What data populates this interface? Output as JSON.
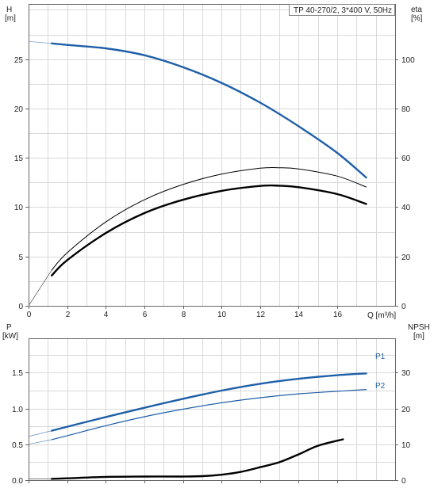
{
  "chart_data": [
    {
      "type": "line",
      "title": "TP 40-270/2, 3*400 V, 50Hz",
      "x_unit_label": "Q [m³/h]",
      "left_axis": {
        "label": "H",
        "unit": "[m]",
        "range": [
          0,
          30.6
        ],
        "ticks": [
          0,
          5,
          10,
          15,
          20,
          25
        ]
      },
      "right_axis": {
        "label": "eta",
        "unit": "[%]",
        "range": [
          0,
          122.4
        ],
        "ticks": [
          0,
          20,
          40,
          60,
          80,
          100
        ]
      },
      "x_range": [
        0,
        19
      ],
      "x_ticks": [
        0,
        2,
        4,
        6,
        8,
        10,
        12,
        14,
        16
      ],
      "grid": true,
      "series": [
        {
          "axis": "left",
          "color": "#1f5fa8",
          "points": [
            [
              0,
              26.8
            ],
            [
              1.2,
              26.6
            ],
            [
              2,
              26.45
            ],
            [
              4,
              26.1
            ],
            [
              6,
              25.4
            ],
            [
              8,
              24.2
            ],
            [
              10,
              22.6
            ],
            [
              12,
              20.6
            ],
            [
              14,
              18.2
            ],
            [
              16,
              15.5
            ],
            [
              17.5,
              13.0
            ]
          ]
        },
        {
          "axis": "right",
          "color": "#000000",
          "points": [
            [
              0,
              0
            ],
            [
              1.2,
              14.5
            ],
            [
              2,
              21.5
            ],
            [
              4,
              34
            ],
            [
              6,
              43
            ],
            [
              8,
              49.2
            ],
            [
              10,
              53.4
            ],
            [
              12,
              55.8
            ],
            [
              13,
              56.0
            ],
            [
              14,
              55.5
            ],
            [
              16,
              52.6
            ],
            [
              17.5,
              48.2
            ]
          ]
        },
        {
          "axis": "right",
          "color": "#000000",
          "points": [
            [
              1.2,
              12.3
            ],
            [
              2,
              18.5
            ],
            [
              4,
              29.5
            ],
            [
              6,
              37.6
            ],
            [
              8,
              43.0
            ],
            [
              10,
              46.6
            ],
            [
              12,
              48.6
            ],
            [
              13,
              48.7
            ],
            [
              14,
              48.1
            ],
            [
              16,
              45.3
            ],
            [
              17.5,
              41.3
            ]
          ]
        }
      ]
    },
    {
      "type": "line",
      "left_axis": {
        "label": "P",
        "unit": "[kW]",
        "range": [
          0,
          1.98
        ],
        "ticks": [
          "0.0",
          "0.5",
          "1.0",
          "1.5"
        ]
      },
      "right_axis": {
        "label": "NPSH",
        "unit": "[m]",
        "range": [
          0,
          39.6
        ],
        "ticks": [
          0,
          10,
          20,
          30
        ]
      },
      "x_range": [
        0,
        19
      ],
      "grid": true,
      "series": [
        {
          "name": "P1",
          "axis": "left",
          "color": "#1f5fa8",
          "points": [
            [
              0,
              0.61
            ],
            [
              1.2,
              0.69
            ],
            [
              2,
              0.745
            ],
            [
              4,
              0.88
            ],
            [
              6,
              1.01
            ],
            [
              8,
              1.135
            ],
            [
              10,
              1.25
            ],
            [
              12,
              1.345
            ],
            [
              14,
              1.415
            ],
            [
              16,
              1.465
            ],
            [
              17.5,
              1.49
            ]
          ]
        },
        {
          "name": "P2",
          "axis": "left",
          "color": "#1f5fa8",
          "points": [
            [
              0,
              0.5
            ],
            [
              1.2,
              0.565
            ],
            [
              2,
              0.62
            ],
            [
              4,
              0.76
            ],
            [
              6,
              0.885
            ],
            [
              8,
              0.99
            ],
            [
              10,
              1.08
            ],
            [
              12,
              1.15
            ],
            [
              14,
              1.205
            ],
            [
              16,
              1.24
            ],
            [
              17.5,
              1.265
            ]
          ]
        },
        {
          "axis": "right",
          "color": "#000000",
          "points": [
            [
              0,
              0.3
            ],
            [
              1.2,
              0.35
            ],
            [
              2,
              0.5
            ],
            [
              4,
              0.9
            ],
            [
              6,
              1.0
            ],
            [
              8,
              1.0
            ],
            [
              9,
              1.1
            ],
            [
              10,
              1.5
            ],
            [
              11,
              2.3
            ],
            [
              12,
              3.6
            ],
            [
              13,
              5.0
            ],
            [
              14,
              7.2
            ],
            [
              15,
              9.6
            ],
            [
              16.3,
              11.4
            ]
          ]
        }
      ]
    }
  ]
}
